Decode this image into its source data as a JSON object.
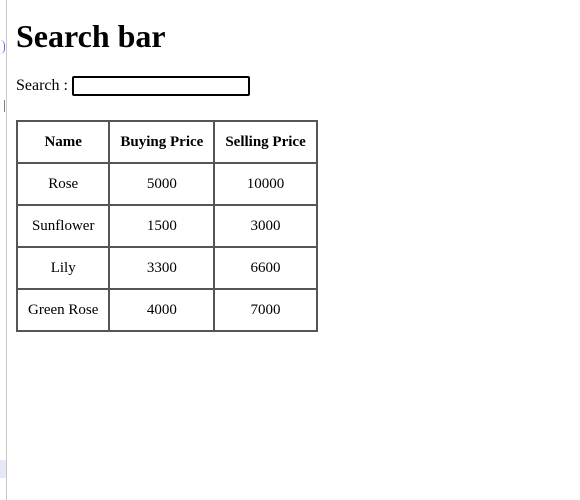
{
  "page": {
    "title": "Search bar"
  },
  "search": {
    "label": "Search :",
    "value": "",
    "placeholder": ""
  },
  "table": {
    "headers": [
      "Name",
      "Buying Price",
      "Selling Price"
    ],
    "rows": [
      [
        "Rose",
        "5000",
        "10000"
      ],
      [
        "Sunflower",
        "1500",
        "3000"
      ],
      [
        "Lily",
        "3300",
        "6600"
      ],
      [
        "Green Rose",
        "4000",
        "7000"
      ]
    ]
  }
}
